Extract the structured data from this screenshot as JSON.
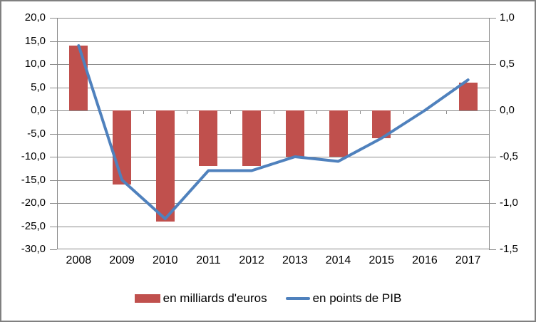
{
  "chart_data": {
    "type": "combo-bar-line",
    "categories": [
      "2008",
      "2009",
      "2010",
      "2011",
      "2012",
      "2013",
      "2014",
      "2015",
      "2016",
      "2017"
    ],
    "series": [
      {
        "name": "en milliards d'euros",
        "type": "bar",
        "axis": "left",
        "color": "#C0504D",
        "values": [
          14.0,
          -16.0,
          -24.0,
          -12.0,
          -12.0,
          -10.0,
          -10.0,
          -6.0,
          0.0,
          6.0
        ]
      },
      {
        "name": "en points de PIB",
        "type": "line",
        "axis": "right",
        "color": "#4F81BD",
        "values": [
          0.7,
          -0.75,
          -1.17,
          -0.65,
          -0.65,
          -0.5,
          -0.55,
          -0.3,
          0.0,
          0.33
        ]
      }
    ],
    "left_axis": {
      "min": -30,
      "max": 20,
      "step": 5,
      "tick_labels": [
        "20,0",
        "15,0",
        "10,0",
        "5,0",
        "0,0",
        "-5,0",
        "-10,0",
        "-15,0",
        "-20,0",
        "-25,0",
        "-30,0"
      ]
    },
    "right_axis": {
      "min": -1.5,
      "max": 1.0,
      "step": 0.5,
      "tick_labels": [
        "1,0",
        "0,5",
        "0,0",
        "-0,5",
        "-1,0",
        "-1,5"
      ],
      "left_equivalent_scale": 20
    },
    "grid": true,
    "legend_position": "bottom"
  },
  "legend": {
    "items": [
      {
        "label": "en milliards d'euros",
        "color": "#C0504D"
      },
      {
        "label": "en points de PIB",
        "color": "#4F81BD"
      }
    ]
  },
  "colors": {
    "bar": "#C0504D",
    "line": "#4F81BD",
    "gridline": "#8a8a8a",
    "frame_border": "#808080",
    "text": "#000000",
    "background": "#FFFFFF"
  }
}
